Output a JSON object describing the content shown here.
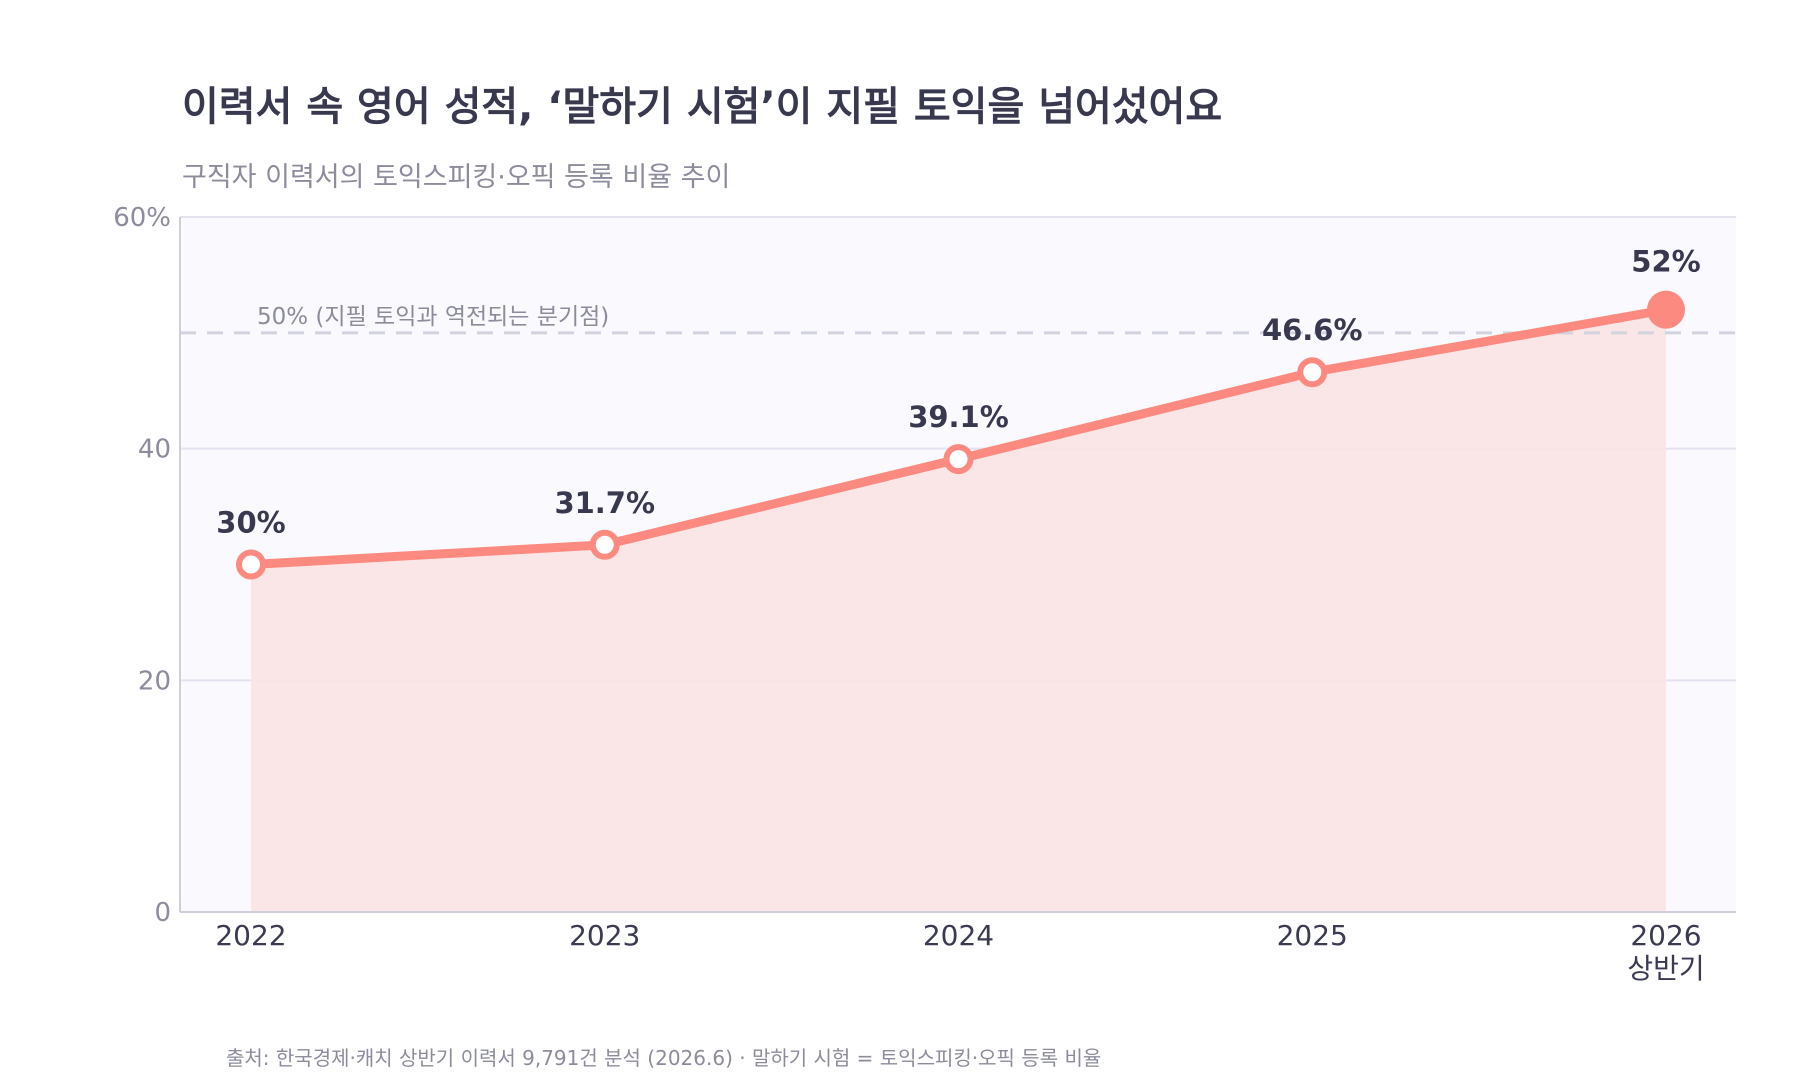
{
  "title": "이력서 속 영어 성적, ‘말하기 시험’이 지필 토익을 넘어섰어요",
  "subtitle": "구직자 이력서의 토익스피킹·오픽 등록 비율 추이",
  "source": "출처: 한국경제·캐치 상반기 이력서 9,791건 분석 (2026.6) · 말하기 시험 = 토익스피킹·오픽 등록 비율",
  "colors": {
    "line": "#fd8a80",
    "area": "#fce3e3",
    "plot_bg": "#f9f9fe",
    "grid": "#e4e2ee",
    "reference": "#d3d3e0",
    "label": "#38384f",
    "axis_text": "#8c8c9c"
  },
  "chart_data": {
    "type": "area",
    "x": [
      "2022",
      "2023",
      "2024",
      "2025",
      "2026 상반기"
    ],
    "x_tick_labels": [
      [
        "2022"
      ],
      [
        "2023"
      ],
      [
        "2024"
      ],
      [
        "2025"
      ],
      [
        "2026",
        "상반기"
      ]
    ],
    "values": [
      30,
      31.7,
      39.1,
      46.6,
      52
    ],
    "data_labels": [
      "30%",
      "31.7%",
      "39.1%",
      "46.6%",
      "52%"
    ],
    "ylim": [
      0,
      60
    ],
    "y_ticks": [
      0,
      20,
      40,
      60
    ],
    "y_tick_labels": [
      "0",
      "20",
      "40",
      "60%"
    ],
    "reference_line": {
      "value": 50,
      "label": "50% (지필 토익과 역전되는 분기점)"
    },
    "highlight_last": true,
    "grid": true,
    "legend": "none",
    "xlabel": "",
    "ylabel": ""
  }
}
